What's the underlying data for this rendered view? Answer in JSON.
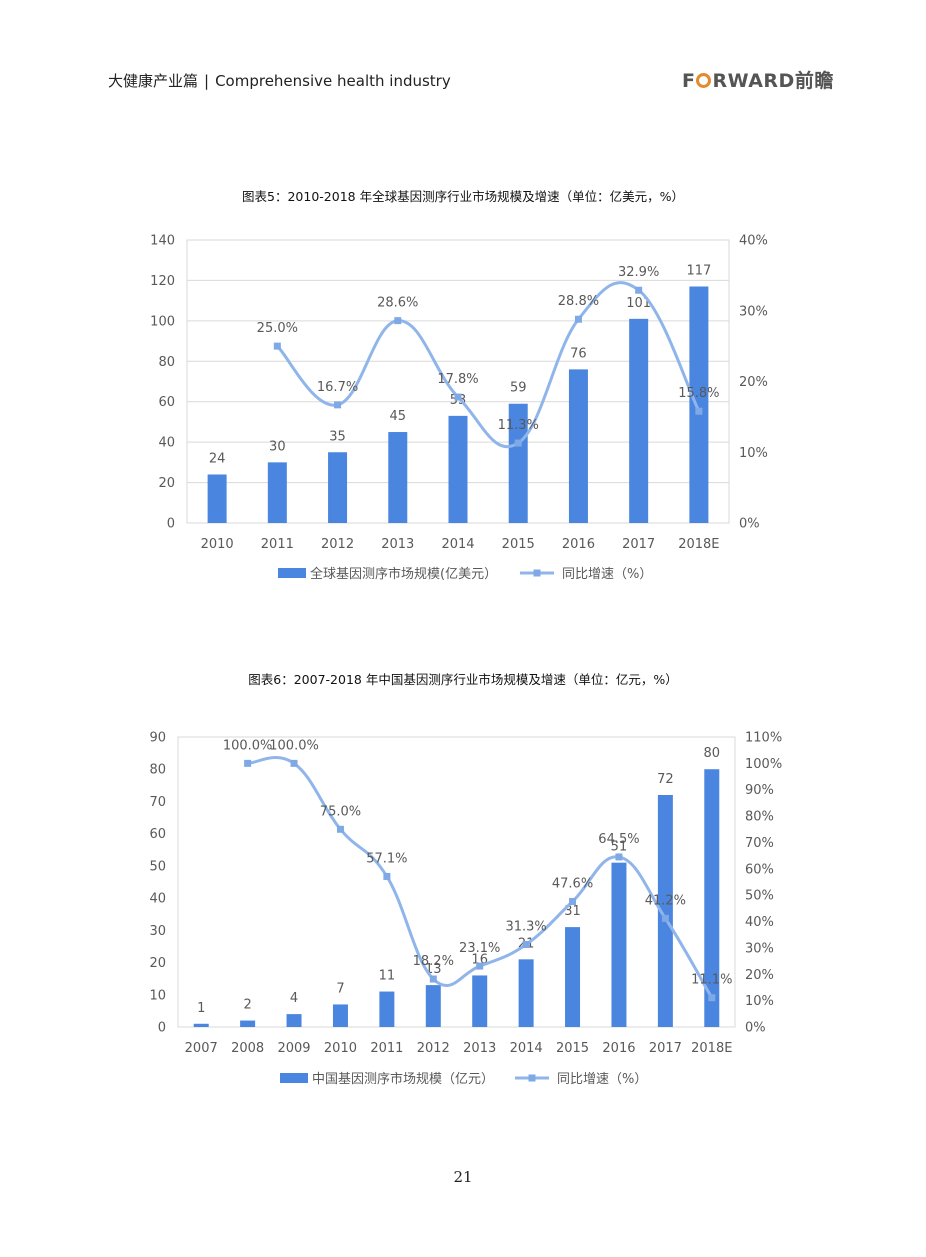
{
  "header": {
    "title_cn": "大健康产业篇",
    "title_en": "Comprehensive health industry",
    "brand": "FORWARD前瞻",
    "brand_pre": "F",
    "brand_post": "RWARD",
    "brand_cn": "前瞻"
  },
  "page_number": "21",
  "colors": {
    "bar": "#4a86df",
    "line": "#8fb5ea",
    "marker": "#7fa9e6",
    "grid": "#d9d9d9",
    "text": "#595959"
  },
  "chart_data": [
    {
      "type": "bar",
      "title": "图表5：2010-2018 年全球基因测序行业市场规模及增速（单位：亿美元，%）",
      "categories": [
        "2010",
        "2011",
        "2012",
        "2013",
        "2014",
        "2015",
        "2016",
        "2017",
        "2018E"
      ],
      "ylim": [
        0,
        140
      ],
      "y_ticks": [
        "0",
        "20",
        "40",
        "60",
        "80",
        "100",
        "120",
        "140"
      ],
      "y2lim": [
        0,
        40
      ],
      "y2_ticks": [
        "0%",
        "10%",
        "20%",
        "30%",
        "40%"
      ],
      "grid": true,
      "legend_position": "bottom",
      "series": [
        {
          "name": "全球基因测序市场规模(亿美元）",
          "type": "bar",
          "axis": "left",
          "values": [
            24,
            30,
            35,
            45,
            53,
            59,
            76,
            101,
            117
          ],
          "labels": [
            "24",
            "30",
            "35",
            "45",
            "53",
            "59",
            "76",
            "101",
            "117"
          ]
        },
        {
          "name": "同比增速（%）",
          "type": "line",
          "axis": "right",
          "values": [
            null,
            25.0,
            16.7,
            28.6,
            17.8,
            11.3,
            28.8,
            32.9,
            15.8
          ],
          "labels": [
            "",
            "25.0%",
            "16.7%",
            "28.6%",
            "17.8%",
            "11.3%",
            "28.8%",
            "32.9%",
            "15.8%"
          ]
        }
      ]
    },
    {
      "type": "bar",
      "title": "图表6：2007-2018 年中国基因测序行业市场规模及增速（单位：亿元，%）",
      "categories": [
        "2007",
        "2008",
        "2009",
        "2010",
        "2011",
        "2012",
        "2013",
        "2014",
        "2015",
        "2016",
        "2017",
        "2018E"
      ],
      "ylim": [
        0,
        90
      ],
      "y_ticks": [
        "0",
        "10",
        "20",
        "30",
        "40",
        "50",
        "60",
        "70",
        "80",
        "90"
      ],
      "y2lim": [
        0,
        110
      ],
      "y2_ticks": [
        "0%",
        "10%",
        "20%",
        "30%",
        "40%",
        "50%",
        "60%",
        "70%",
        "80%",
        "90%",
        "100%",
        "110%"
      ],
      "grid": false,
      "legend_position": "bottom",
      "series": [
        {
          "name": "中国基因测序市场规模（亿元）",
          "type": "bar",
          "axis": "left",
          "values": [
            1,
            2,
            4,
            7,
            11,
            13,
            16,
            21,
            31,
            51,
            72,
            80
          ],
          "labels": [
            "1",
            "2",
            "4",
            "7",
            "11",
            "13",
            "16",
            "21",
            "31",
            "51",
            "72",
            "80"
          ]
        },
        {
          "name": "同比增速（%）",
          "type": "line",
          "axis": "right",
          "values": [
            null,
            100.0,
            100.0,
            75.0,
            57.1,
            18.2,
            23.1,
            31.3,
            47.6,
            64.5,
            41.2,
            11.1
          ],
          "labels": [
            "",
            "100.0%",
            "100.0%",
            "75.0%",
            "57.1%",
            "18.2%",
            "23.1%",
            "31.3%",
            "47.6%",
            "64.5%",
            "41.2%",
            "11.1%"
          ]
        }
      ]
    }
  ]
}
